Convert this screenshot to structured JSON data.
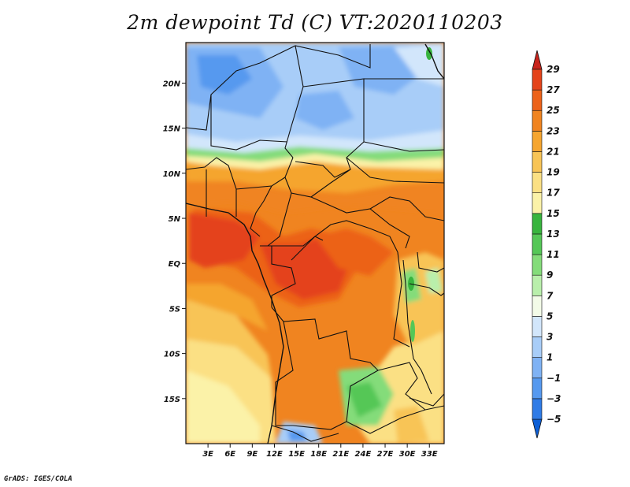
{
  "title": "2m dewpoint Td (C) VT:2020110203",
  "footer": "GrADS: IGES/COLA",
  "map": {
    "lon_range": [
      0,
      35
    ],
    "lat_range": [
      -20,
      24.5
    ],
    "lat_ticks": [
      {
        "value": 20,
        "label": "20N"
      },
      {
        "value": 15,
        "label": "15N"
      },
      {
        "value": 10,
        "label": "10N"
      },
      {
        "value": 5,
        "label": "5N"
      },
      {
        "value": 0,
        "label": "EQ"
      },
      {
        "value": -5,
        "label": "5S"
      },
      {
        "value": -10,
        "label": "10S"
      },
      {
        "value": -15,
        "label": "15S"
      }
    ],
    "lon_ticks": [
      {
        "value": 3,
        "label": "3E"
      },
      {
        "value": 6,
        "label": "6E"
      },
      {
        "value": 9,
        "label": "9E"
      },
      {
        "value": 12,
        "label": "12E"
      },
      {
        "value": 15,
        "label": "15E"
      },
      {
        "value": 18,
        "label": "18E"
      },
      {
        "value": 21,
        "label": "21E"
      },
      {
        "value": 24,
        "label": "24E"
      },
      {
        "value": 27,
        "label": "27E"
      },
      {
        "value": 30,
        "label": "30E"
      },
      {
        "value": 33,
        "label": "33E"
      }
    ]
  },
  "colorbar": {
    "levels": [
      29,
      27,
      25,
      23,
      21,
      19,
      17,
      15,
      13,
      11,
      9,
      7,
      5,
      3,
      1,
      -1,
      -3,
      -5
    ],
    "level_labels": [
      "29",
      "27",
      "25",
      "23",
      "21",
      "19",
      "17",
      "15",
      "13",
      "11",
      "9",
      "7",
      "5",
      "3",
      "1",
      "−1",
      "−3",
      "−5"
    ],
    "colors": [
      "#0d5fd6",
      "#2f7be6",
      "#5699ef",
      "#7fb2f4",
      "#a8cdf8",
      "#d2e6fb",
      "#f3fbe8",
      "#b9efab",
      "#84dc7a",
      "#55c757",
      "#38b43e",
      "#fbf2a8",
      "#fbe084",
      "#f8c456",
      "#f5a52f",
      "#f08420",
      "#ec6219",
      "#e4431a",
      "#c8241c"
    ]
  }
}
